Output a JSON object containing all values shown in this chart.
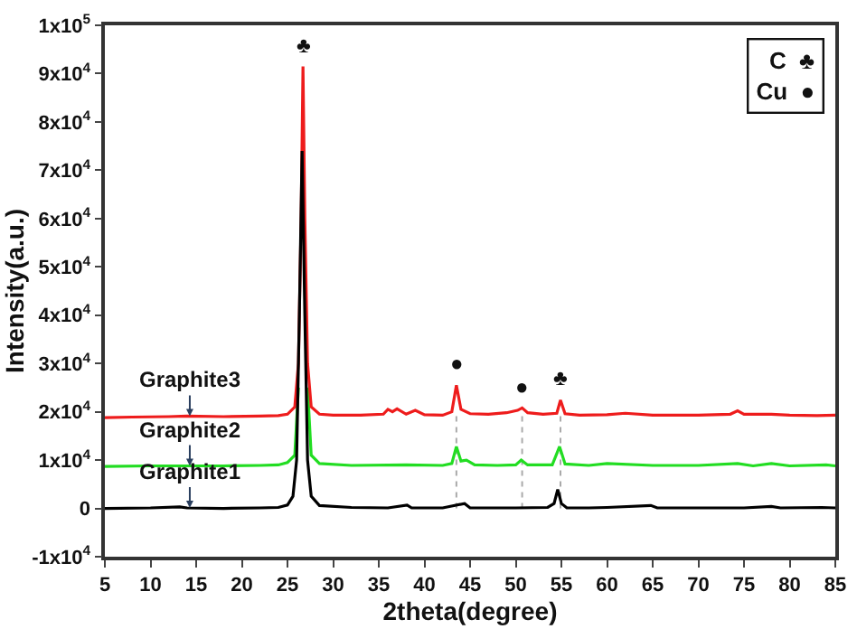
{
  "chart_data": {
    "type": "line",
    "xlabel": "2theta(degree)",
    "ylabel": "Intensity(a.u.)",
    "xlim": [
      5,
      85
    ],
    "xticks": [
      5,
      10,
      15,
      20,
      25,
      30,
      35,
      40,
      45,
      50,
      55,
      60,
      65,
      70,
      75,
      80,
      85
    ],
    "ylim": [
      -10000,
      100000
    ],
    "yticks": [
      {
        "value": -10000,
        "label": "-1x10$^{4}$"
      },
      0,
      {
        "value": 10000,
        "label": "1x10$^{4}$"
      },
      {
        "value": 20000,
        "label": "2x10$^{4}$"
      },
      {
        "value": 30000,
        "label": "3x10$^{4}$"
      },
      {
        "value": 40000,
        "label": "4x10$^{4}$"
      },
      {
        "value": 50000,
        "label": "5x10$^{4}$"
      },
      {
        "value": 60000,
        "label": "6x10$^{4}$"
      },
      {
        "value": 70000,
        "label": "7x10$^{4}$"
      },
      {
        "value": 80000,
        "label": "8x10$^{4}$"
      },
      {
        "value": 90000,
        "label": "9x10$^{4}$"
      },
      {
        "value": 100000,
        "label": "1x10$^{5}$"
      }
    ],
    "marker": "none",
    "line_style": "solid",
    "series": [
      {
        "color": "#aaaaaa",
        "line_style": "dotted",
        "x": [
          43.5,
          43.5
        ],
        "values": [
          0,
          19500
        ]
      },
      {
        "color": "#aaaaaa",
        "line_style": "dotted",
        "x": [
          50.7,
          50.7
        ],
        "values": [
          0,
          19800
        ]
      },
      {
        "color": "#aaaaaa",
        "line_style": "dotted",
        "x": [
          54.9,
          54.9
        ],
        "values": [
          0,
          19700
        ]
      },
      {
        "color": "#000000",
        "x": [
          5,
          10,
          13.2,
          14,
          18,
          22,
          24,
          25,
          25.6,
          26,
          26.3,
          26.6,
          26.9,
          27.2,
          27.6,
          28.5,
          32,
          36,
          38.1,
          38.6,
          42,
          44.4,
          45,
          50,
          53.5,
          54.2,
          54.6,
          55,
          55.6,
          58,
          60,
          64.8,
          65.5,
          70,
          75,
          78,
          79,
          83.5,
          85
        ],
        "values": [
          0,
          100,
          300,
          100,
          0,
          100,
          200,
          700,
          2500,
          10000,
          40000,
          74000,
          40000,
          10000,
          2500,
          600,
          200,
          100,
          700,
          100,
          100,
          1000,
          100,
          100,
          200,
          1000,
          3900,
          1000,
          100,
          100,
          200,
          600,
          100,
          100,
          100,
          400,
          100,
          200,
          100
        ]
      },
      {
        "color": "#22dd22",
        "x": [
          5,
          10,
          14,
          18,
          22,
          24,
          25,
          25.8,
          26.2,
          26.5,
          26.7,
          26.9,
          27.2,
          27.6,
          28.5,
          32,
          38,
          42,
          43,
          43.5,
          44,
          44.6,
          45.5,
          48,
          50,
          50.6,
          51.3,
          54,
          54.8,
          55.4,
          58,
          60,
          65,
          70,
          74.3,
          76,
          78,
          80,
          84,
          85
        ],
        "values": [
          8700,
          8800,
          8800,
          8800,
          8900,
          9000,
          9500,
          11000,
          25000,
          null,
          null,
          null,
          25000,
          11000,
          9300,
          8900,
          9000,
          8900,
          9300,
          12800,
          9800,
          10000,
          9000,
          8900,
          9000,
          10000,
          9000,
          9000,
          12800,
          9200,
          8900,
          9300,
          8900,
          8900,
          9300,
          8800,
          9300,
          8800,
          9000,
          8800
        ]
      },
      {
        "color": "#ee1c1c",
        "x": [
          5,
          8,
          12,
          14,
          18,
          22,
          24,
          25,
          25.8,
          26.2,
          26.5,
          26.7,
          26.9,
          27.2,
          27.6,
          28.5,
          30,
          33,
          35.5,
          36,
          36.5,
          37,
          38,
          39,
          40,
          42,
          43,
          43.5,
          44,
          45,
          47,
          49,
          50.2,
          50.7,
          51.3,
          53,
          54.5,
          54.9,
          55.4,
          57,
          60,
          62,
          65,
          70,
          73.5,
          74.3,
          75,
          78,
          80,
          83,
          85
        ],
        "values": [
          18800,
          18900,
          19000,
          19100,
          19000,
          19100,
          19200,
          19500,
          21000,
          30000,
          60000,
          91500,
          60000,
          30000,
          21000,
          19500,
          19300,
          19300,
          19500,
          20500,
          20000,
          20600,
          19500,
          20300,
          19400,
          19300,
          20000,
          25500,
          20500,
          19600,
          19500,
          19800,
          20300,
          20800,
          19800,
          19500,
          19700,
          22400,
          19600,
          19300,
          19400,
          19700,
          19300,
          19300,
          19500,
          20200,
          19500,
          19500,
          19300,
          19200,
          19300
        ]
      }
    ],
    "annotations": [
      {
        "text": "Graphite3",
        "x": 14.3,
        "y": 19100
      },
      {
        "text": "Graphite2",
        "x": 14.3,
        "y": 8800
      },
      {
        "text": "Graphite1",
        "x": 14.3,
        "y": 100
      },
      {
        "text": "♣",
        "x": 26.7,
        "y": 91500
      },
      {
        "text": "●",
        "x": 43.5,
        "y": 25500
      },
      {
        "text": "●",
        "x": 50.7,
        "y": 20800
      },
      {
        "text": "♣",
        "x": 54.9,
        "y": 22400
      },
      "C  ♣\nCu  ●"
    ]
  }
}
